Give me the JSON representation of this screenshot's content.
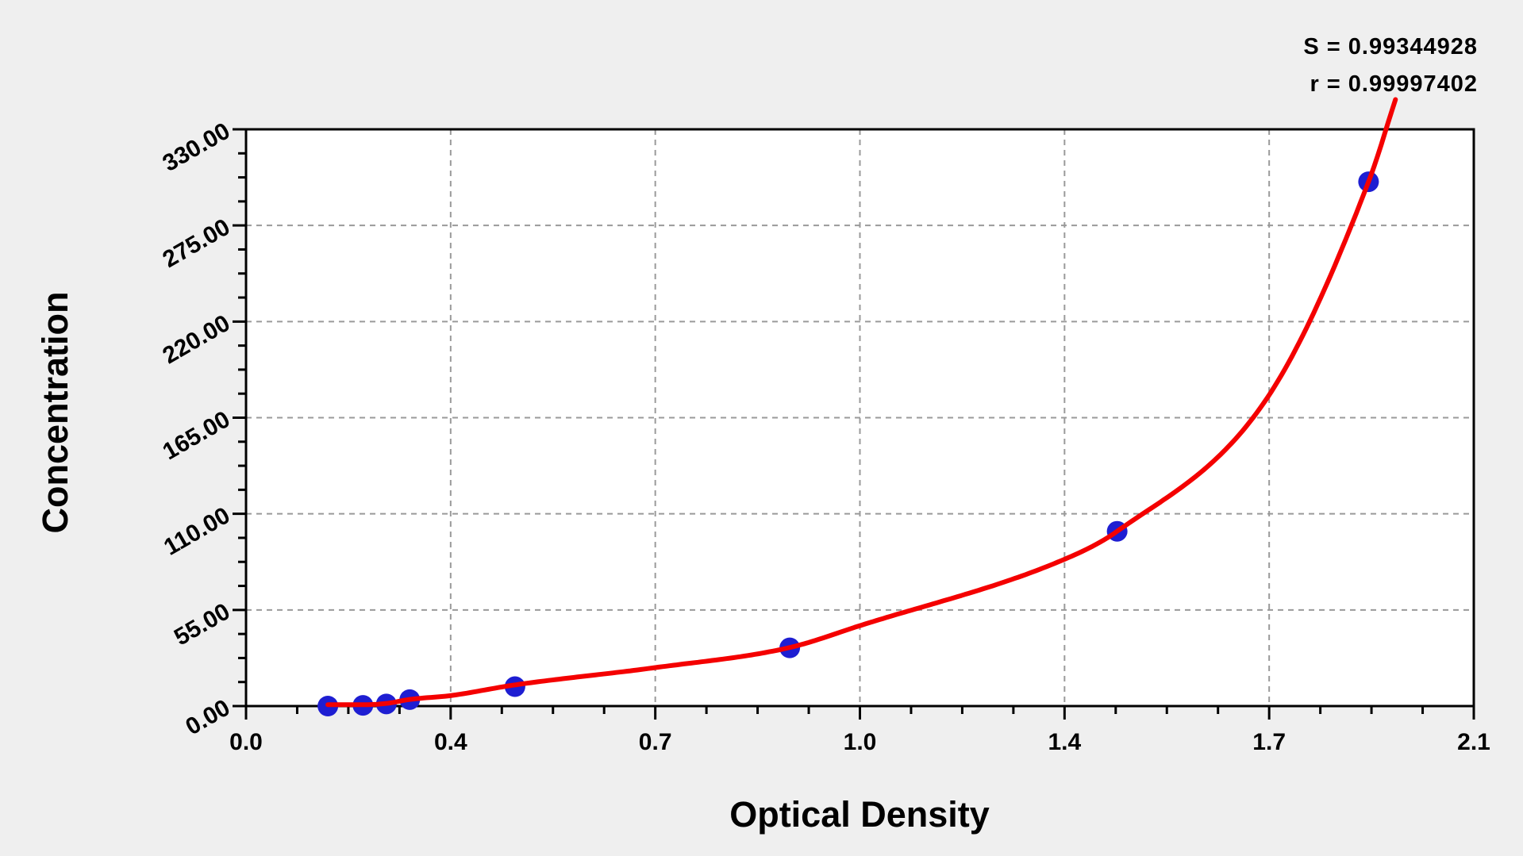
{
  "style": {
    "page_bg": "#efefef",
    "plot_bg": "#ffffff",
    "axis_color": "#000000",
    "grid_color": "#9a9a9a",
    "curve_color": "#f40000",
    "point_color": "#1e1ed2",
    "text_color": "#000000"
  },
  "chart_data": {
    "type": "scatter",
    "title": "",
    "xlabel": "Optical Density",
    "ylabel": "Concentration",
    "xlim": [
      0,
      2.1
    ],
    "ylim": [
      0,
      330
    ],
    "grid": "dashed gray gridlines at major ticks, white plot background",
    "legend": "none",
    "x_major_ticks": [
      0,
      0.35,
      0.7,
      1.05,
      1.4,
      1.75,
      2.1
    ],
    "x_tick_labels": [
      "0.0",
      "0.4",
      "0.7",
      "1.0",
      "1.4",
      "1.7",
      "2.1"
    ],
    "y_major_ticks": [
      0,
      55,
      110,
      165,
      220,
      275,
      330
    ],
    "y_tick_labels": [
      "0.00",
      "55.00",
      "110.00",
      "165.00",
      "220.00",
      "275.00",
      "330.00"
    ],
    "minor_ticks_per_major": 4,
    "series": [
      {
        "name": "standard points",
        "type": "scatter",
        "x": [
          0.14,
          0.2,
          0.24,
          0.28,
          0.46,
          0.93,
          1.49,
          1.92
        ],
        "y": [
          0,
          0.4,
          1.2,
          3.7,
          11.1,
          33.3,
          100,
          300
        ]
      }
    ],
    "fit_curve": {
      "name": "fitted standard curve",
      "type": "line",
      "x": [
        0.14,
        0.2,
        0.24,
        0.28,
        0.35,
        0.46,
        0.7,
        0.93,
        1.05,
        1.4,
        1.49,
        1.75,
        1.92,
        1.966
      ],
      "y": [
        0.8,
        0.8,
        1.5,
        3.8,
        6.0,
        12.1,
        22.0,
        33.5,
        46.0,
        84.0,
        100.0,
        178.0,
        300.0,
        347.0
      ],
      "note": "curve overshoots the top plot border at upper right"
    },
    "annotations": [
      {
        "id": "S",
        "text": "S = 0.99344928"
      },
      {
        "id": "r",
        "text": "r = 0.99997402"
      }
    ]
  }
}
